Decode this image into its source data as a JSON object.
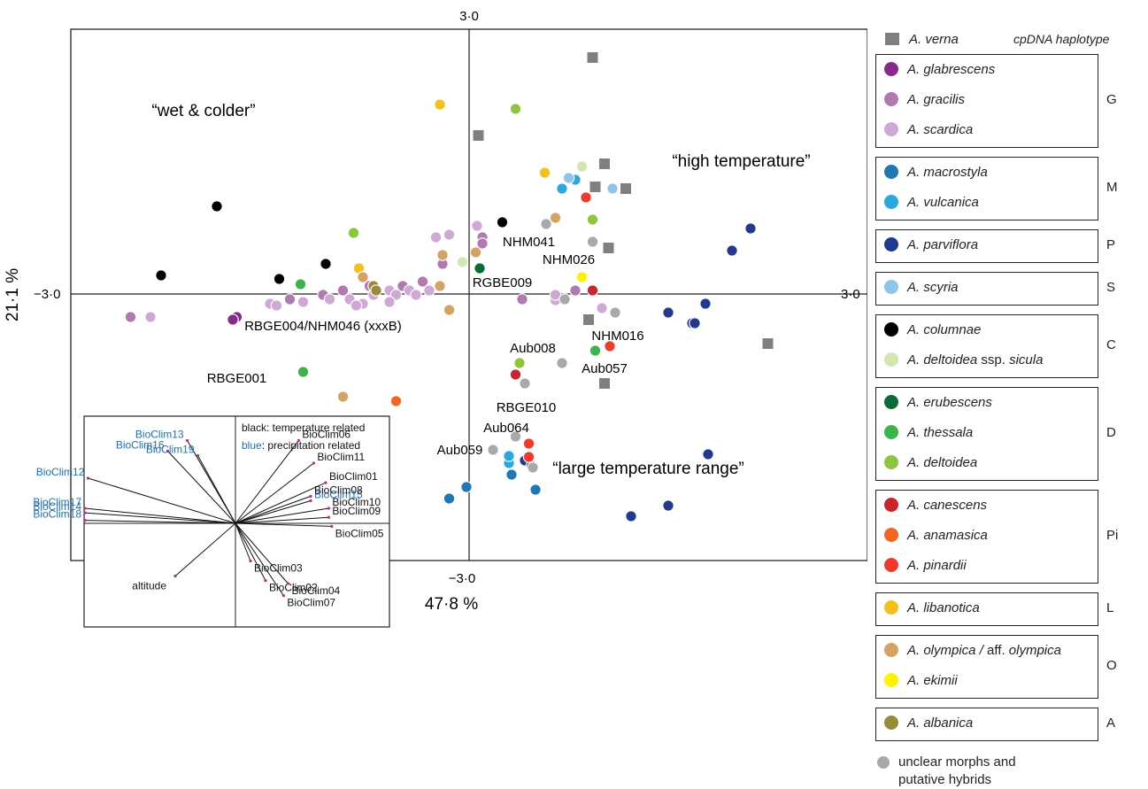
{
  "chart_data": {
    "type": "scatter",
    "title": "",
    "xlabel": "47·8 %",
    "ylabel": "21·1 %",
    "xlim": [
      -3.0,
      3.0
    ],
    "ylim": [
      -3.0,
      3.0
    ],
    "axis_tick_labels": {
      "top": "3·0",
      "bottom": "−3·0",
      "left": "−3·0",
      "right": "3·0"
    },
    "grid": false,
    "quadrant_labels": [
      {
        "text": "“wet & colder”",
        "x": -2.0,
        "y": 2.02
      },
      {
        "text": "“high temperature”",
        "x": 2.05,
        "y": 1.45
      },
      {
        "text": "“large temperature range”",
        "x": 1.35,
        "y": -2.02
      }
    ],
    "groups": {
      "verna": {
        "name": "A. verna",
        "color": "#808080",
        "shape": "square"
      },
      "glabrescens": {
        "name": "A. glabrescens",
        "color": "#882a8c"
      },
      "gracilis": {
        "name": "A. gracilis",
        "color": "#b07ab0"
      },
      "scardica": {
        "name": "A. scardica",
        "color": "#cfa8d6"
      },
      "macrostyla": {
        "name": "A. macrostyla",
        "color": "#1f78b4"
      },
      "vulcanica": {
        "name": "A. vulcanica",
        "color": "#29a8e0"
      },
      "parviflora": {
        "name": "A. parviflora",
        "color": "#213a8f"
      },
      "scyria": {
        "name": "A. scyria",
        "color": "#8fc5ea"
      },
      "columnae": {
        "name": "A. columnae",
        "color": "#000000"
      },
      "sicula": {
        "name": "A. deltoidea ssp. sicula",
        "color": "#d1e6b0"
      },
      "erubescens": {
        "name": "A. erubescens",
        "color": "#0a6b35"
      },
      "thessala": {
        "name": "A. thessala",
        "color": "#3cb44b"
      },
      "deltoidea": {
        "name": "A. deltoidea",
        "color": "#8cc63f"
      },
      "canescens": {
        "name": "A. canescens",
        "color": "#c8252c"
      },
      "anamasica": {
        "name": "A. anamasica",
        "color": "#f26522"
      },
      "pinardii": {
        "name": "A. pinardii",
        "color": "#ee3b2b"
      },
      "libanotica": {
        "name": "A. libanotica",
        "color": "#f5c01a"
      },
      "olympica": {
        "name": "A. olympica / aff. olympica",
        "color": "#d4a262"
      },
      "ekimii": {
        "name": "A. ekimii",
        "color": "#fff200"
      },
      "albanica": {
        "name": "A. albanica",
        "color": "#9a8b3a"
      },
      "unclear": {
        "name": "unclear morphs and putative hybrids",
        "color": "#a7a9ac"
      }
    },
    "points": [
      {
        "g": "verna",
        "x": 0.93,
        "y": 2.68
      },
      {
        "g": "verna",
        "x": 0.07,
        "y": 1.8
      },
      {
        "g": "verna",
        "x": 1.02,
        "y": 1.48
      },
      {
        "g": "verna",
        "x": 0.95,
        "y": 1.22
      },
      {
        "g": "verna",
        "x": 1.18,
        "y": 1.2
      },
      {
        "g": "verna",
        "x": 1.05,
        "y": 0.53
      },
      {
        "g": "verna",
        "x": 0.9,
        "y": -0.28
      },
      {
        "g": "verna",
        "x": 2.25,
        "y": -0.55
      },
      {
        "g": "verna",
        "x": 1.02,
        "y": -1.0
      },
      {
        "g": "glabrescens",
        "x": -1.75,
        "y": -0.25
      },
      {
        "g": "glabrescens",
        "x": -1.78,
        "y": -0.28
      },
      {
        "g": "gracilis",
        "x": -2.55,
        "y": -0.25
      },
      {
        "g": "gracilis",
        "x": -1.35,
        "y": -0.05
      },
      {
        "g": "gracilis",
        "x": -1.1,
        "y": 0.0
      },
      {
        "g": "gracilis",
        "x": -0.95,
        "y": 0.05
      },
      {
        "g": "gracilis",
        "x": -0.75,
        "y": 0.1
      },
      {
        "g": "gracilis",
        "x": -0.5,
        "y": 0.1
      },
      {
        "g": "gracilis",
        "x": -0.35,
        "y": 0.15
      },
      {
        "g": "gracilis",
        "x": -0.2,
        "y": 0.35
      },
      {
        "g": "gracilis",
        "x": 0.1,
        "y": 0.65
      },
      {
        "g": "gracilis",
        "x": 0.1,
        "y": 0.58
      },
      {
        "g": "gracilis",
        "x": 0.4,
        "y": -0.05
      },
      {
        "g": "gracilis",
        "x": 0.8,
        "y": 0.05
      },
      {
        "g": "scardica",
        "x": -2.4,
        "y": -0.25
      },
      {
        "g": "scardica",
        "x": -1.5,
        "y": -0.1
      },
      {
        "g": "scardica",
        "x": -1.45,
        "y": -0.12
      },
      {
        "g": "scardica",
        "x": -1.25,
        "y": -0.08
      },
      {
        "g": "scardica",
        "x": -1.05,
        "y": -0.05
      },
      {
        "g": "scardica",
        "x": -0.9,
        "y": -0.05
      },
      {
        "g": "scardica",
        "x": -0.8,
        "y": -0.1
      },
      {
        "g": "scardica",
        "x": -0.72,
        "y": 0.0
      },
      {
        "g": "scardica",
        "x": -0.6,
        "y": 0.05
      },
      {
        "g": "scardica",
        "x": -0.55,
        "y": 0.0
      },
      {
        "g": "scardica",
        "x": -0.45,
        "y": 0.05
      },
      {
        "g": "scardica",
        "x": -0.4,
        "y": 0.0
      },
      {
        "g": "scardica",
        "x": -0.3,
        "y": 0.05
      },
      {
        "g": "scardica",
        "x": -0.25,
        "y": 0.65
      },
      {
        "g": "scardica",
        "x": -0.15,
        "y": 0.68
      },
      {
        "g": "scardica",
        "x": 0.06,
        "y": 0.78
      },
      {
        "g": "scardica",
        "x": 0.65,
        "y": -0.06
      },
      {
        "g": "scardica",
        "x": 0.65,
        "y": 0.0
      },
      {
        "g": "scardica",
        "x": 1.0,
        "y": -0.15
      },
      {
        "g": "scardica",
        "x": -0.85,
        "y": -0.12
      },
      {
        "g": "scardica",
        "x": -0.6,
        "y": -0.08
      },
      {
        "g": "macrostyla",
        "x": -0.02,
        "y": -2.17
      },
      {
        "g": "macrostyla",
        "x": -0.15,
        "y": -2.3
      },
      {
        "g": "macrostyla",
        "x": 0.32,
        "y": -2.03
      },
      {
        "g": "macrostyla",
        "x": 0.5,
        "y": -2.2
      },
      {
        "g": "vulcanica",
        "x": 0.3,
        "y": -1.9
      },
      {
        "g": "vulcanica",
        "x": 0.3,
        "y": -1.82
      },
      {
        "g": "vulcanica",
        "x": 0.7,
        "y": 1.2
      },
      {
        "g": "vulcanica",
        "x": 0.8,
        "y": 1.3
      },
      {
        "g": "parviflora",
        "x": 2.12,
        "y": 0.75
      },
      {
        "g": "parviflora",
        "x": 1.98,
        "y": 0.5
      },
      {
        "g": "parviflora",
        "x": 1.78,
        "y": -0.1
      },
      {
        "g": "parviflora",
        "x": 1.5,
        "y": -0.2
      },
      {
        "g": "parviflora",
        "x": 1.68,
        "y": -0.32
      },
      {
        "g": "parviflora",
        "x": 1.7,
        "y": -0.32
      },
      {
        "g": "parviflora",
        "x": 1.8,
        "y": -1.8
      },
      {
        "g": "parviflora",
        "x": 1.5,
        "y": -2.38
      },
      {
        "g": "parviflora",
        "x": 1.22,
        "y": -2.5
      },
      {
        "g": "parviflora",
        "x": 0.42,
        "y": -1.87
      },
      {
        "g": "parviflora",
        "x": 0.47,
        "y": -1.93
      },
      {
        "g": "scyria",
        "x": 0.75,
        "y": 1.32
      },
      {
        "g": "scyria",
        "x": 1.08,
        "y": 1.2
      },
      {
        "g": "columnae",
        "x": -1.9,
        "y": 1.0
      },
      {
        "g": "columnae",
        "x": -2.32,
        "y": 0.22
      },
      {
        "g": "columnae",
        "x": -1.43,
        "y": 0.18
      },
      {
        "g": "columnae",
        "x": -1.08,
        "y": 0.35
      },
      {
        "g": "columnae",
        "x": 0.25,
        "y": 0.82
      },
      {
        "g": "sicula",
        "x": -0.05,
        "y": 0.37
      },
      {
        "g": "sicula",
        "x": 0.85,
        "y": 1.45
      },
      {
        "g": "erubescens",
        "x": 0.08,
        "y": 0.3
      },
      {
        "g": "thessala",
        "x": -1.27,
        "y": 0.12
      },
      {
        "g": "thessala",
        "x": -1.25,
        "y": -0.87
      },
      {
        "g": "thessala",
        "x": 0.95,
        "y": -0.63
      },
      {
        "g": "deltoidea",
        "x": -0.87,
        "y": 0.7
      },
      {
        "g": "deltoidea",
        "x": 0.35,
        "y": 2.1
      },
      {
        "g": "deltoidea",
        "x": 0.93,
        "y": 0.85
      },
      {
        "g": "deltoidea",
        "x": 0.38,
        "y": -0.77
      },
      {
        "g": "canescens",
        "x": 0.35,
        "y": -0.9
      },
      {
        "g": "canescens",
        "x": 0.93,
        "y": 0.05
      },
      {
        "g": "anamasica",
        "x": -0.55,
        "y": -1.2
      },
      {
        "g": "pinardii",
        "x": 0.88,
        "y": 1.1
      },
      {
        "g": "pinardii",
        "x": 0.45,
        "y": -1.68
      },
      {
        "g": "pinardii",
        "x": 0.45,
        "y": -1.83
      },
      {
        "g": "pinardii",
        "x": 1.06,
        "y": -0.58
      },
      {
        "g": "libanotica",
        "x": -0.83,
        "y": 0.3
      },
      {
        "g": "libanotica",
        "x": -0.22,
        "y": 2.15
      },
      {
        "g": "libanotica",
        "x": 0.57,
        "y": 1.38
      },
      {
        "g": "olympica",
        "x": -0.8,
        "y": 0.2
      },
      {
        "g": "olympica",
        "x": -0.2,
        "y": 0.45
      },
      {
        "g": "olympica",
        "x": -0.22,
        "y": 0.1
      },
      {
        "g": "olympica",
        "x": -0.15,
        "y": -0.17
      },
      {
        "g": "olympica",
        "x": -0.95,
        "y": -1.15
      },
      {
        "g": "olympica",
        "x": 0.05,
        "y": 0.48
      },
      {
        "g": "olympica",
        "x": 0.65,
        "y": 0.87
      },
      {
        "g": "ekimii",
        "x": 0.85,
        "y": 0.2
      },
      {
        "g": "albanica",
        "x": -0.72,
        "y": 0.1
      },
      {
        "g": "albanica",
        "x": -0.7,
        "y": 0.05
      },
      {
        "g": "unclear",
        "x": 0.7,
        "y": -0.77
      },
      {
        "g": "unclear",
        "x": 0.42,
        "y": -1.0
      },
      {
        "g": "unclear",
        "x": 0.35,
        "y": -1.6
      },
      {
        "g": "unclear",
        "x": 0.18,
        "y": -1.75
      },
      {
        "g": "unclear",
        "x": 0.58,
        "y": 0.8
      },
      {
        "g": "unclear",
        "x": 0.72,
        "y": -0.05
      },
      {
        "g": "unclear",
        "x": 0.93,
        "y": 0.6
      },
      {
        "g": "unclear",
        "x": 1.1,
        "y": -0.2
      },
      {
        "g": "unclear",
        "x": 0.48,
        "y": -1.95
      }
    ],
    "sample_labels": [
      {
        "text": "NHM041",
        "x": 0.45,
        "y": 0.6
      },
      {
        "text": "NHM026",
        "x": 0.75,
        "y": 0.4
      },
      {
        "text": "RGBE009",
        "x": 0.25,
        "y": 0.14
      },
      {
        "text": "RBGE004/NHM046 (xxxB)",
        "x": -1.1,
        "y": -0.35
      },
      {
        "text": "NHM016",
        "x": 1.12,
        "y": -0.46
      },
      {
        "text": "Aub008",
        "x": 0.48,
        "y": -0.6
      },
      {
        "text": "Aub057",
        "x": 1.02,
        "y": -0.83
      },
      {
        "text": "RBGE001",
        "x": -1.75,
        "y": -0.94
      },
      {
        "text": "RBGE010",
        "x": 0.43,
        "y": -1.27
      },
      {
        "text": "Aub064",
        "x": 0.28,
        "y": -1.5
      },
      {
        "text": "Aub059",
        "x": -0.07,
        "y": -1.75
      }
    ],
    "inset": {
      "legend_lines": [
        {
          "text": "black: temperature related",
          "color": "#111111"
        },
        {
          "text": "blue: precipitation related",
          "color": "#111111",
          "highlight": "blue",
          "highlight_color": "#1f6fb5"
        }
      ],
      "vectors": [
        {
          "label": "BioClim13",
          "dx": -0.32,
          "dy": 0.55,
          "color": "#1f6fb5"
        },
        {
          "label": "BioClim16",
          "dx": -0.45,
          "dy": 0.48,
          "color": "#1f6fb5"
        },
        {
          "label": "BioClim19",
          "dx": -0.25,
          "dy": 0.45,
          "color": "#1f6fb5"
        },
        {
          "label": "BioClim12",
          "dx": -0.98,
          "dy": 0.3,
          "color": "#1f6fb5"
        },
        {
          "label": "BioClim17",
          "dx": -1.0,
          "dy": 0.1,
          "color": "#1f6fb5"
        },
        {
          "label": "BioClim14",
          "dx": -1.0,
          "dy": 0.07,
          "color": "#1f6fb5"
        },
        {
          "label": "BioClim18",
          "dx": -1.0,
          "dy": 0.02,
          "color": "#1f6fb5"
        },
        {
          "label": "BioClim15",
          "dx": 0.5,
          "dy": 0.15,
          "color": "#1f6fb5"
        },
        {
          "label": "BioClim06",
          "dx": 0.42,
          "dy": 0.55,
          "color": "#111111"
        },
        {
          "label": "BioClim11",
          "dx": 0.52,
          "dy": 0.4,
          "color": "#111111"
        },
        {
          "label": "BioClim01",
          "dx": 0.6,
          "dy": 0.27,
          "color": "#111111"
        },
        {
          "label": "BioClim08",
          "dx": 0.5,
          "dy": 0.18,
          "color": "#111111"
        },
        {
          "label": "BioClim10",
          "dx": 0.62,
          "dy": 0.1,
          "color": "#111111"
        },
        {
          "label": "BioClim09",
          "dx": 0.62,
          "dy": 0.04,
          "color": "#111111"
        },
        {
          "label": "BioClim05",
          "dx": 0.64,
          "dy": -0.02,
          "color": "#111111"
        },
        {
          "label": "BioClim03",
          "dx": 0.1,
          "dy": -0.25,
          "color": "#111111"
        },
        {
          "label": "BioClim02",
          "dx": 0.2,
          "dy": -0.38,
          "color": "#111111"
        },
        {
          "label": "BioClim04",
          "dx": 0.35,
          "dy": -0.4,
          "color": "#111111"
        },
        {
          "label": "BioClim07",
          "dx": 0.32,
          "dy": -0.48,
          "color": "#111111"
        },
        {
          "label": "altitude",
          "dx": -0.4,
          "dy": -0.35,
          "color": "#111111"
        }
      ]
    },
    "legend": {
      "header": "cpDNA haplotype",
      "top_item": {
        "g": "verna"
      },
      "groups": [
        {
          "haplotype": "G",
          "items": [
            "glabrescens",
            "gracilis",
            "scardica"
          ]
        },
        {
          "haplotype": "M",
          "items": [
            "macrostyla",
            "vulcanica"
          ]
        },
        {
          "haplotype": "P",
          "items": [
            "parviflora"
          ]
        },
        {
          "haplotype": "S",
          "items": [
            "scyria"
          ]
        },
        {
          "haplotype": "C",
          "items": [
            "columnae",
            "sicula"
          ]
        },
        {
          "haplotype": "D",
          "items": [
            "erubescens",
            "thessala",
            "deltoidea"
          ]
        },
        {
          "haplotype": "Pi",
          "items": [
            "canescens",
            "anamasica",
            "pinardii"
          ]
        },
        {
          "haplotype": "L",
          "items": [
            "libanotica"
          ]
        },
        {
          "haplotype": "O",
          "items": [
            "olympica",
            "ekimii"
          ]
        },
        {
          "haplotype": "A",
          "items": [
            "albanica"
          ]
        }
      ],
      "footer": {
        "g": "unclear",
        "lines": [
          "unclear morphs and",
          "putative hybrids"
        ]
      }
    }
  }
}
